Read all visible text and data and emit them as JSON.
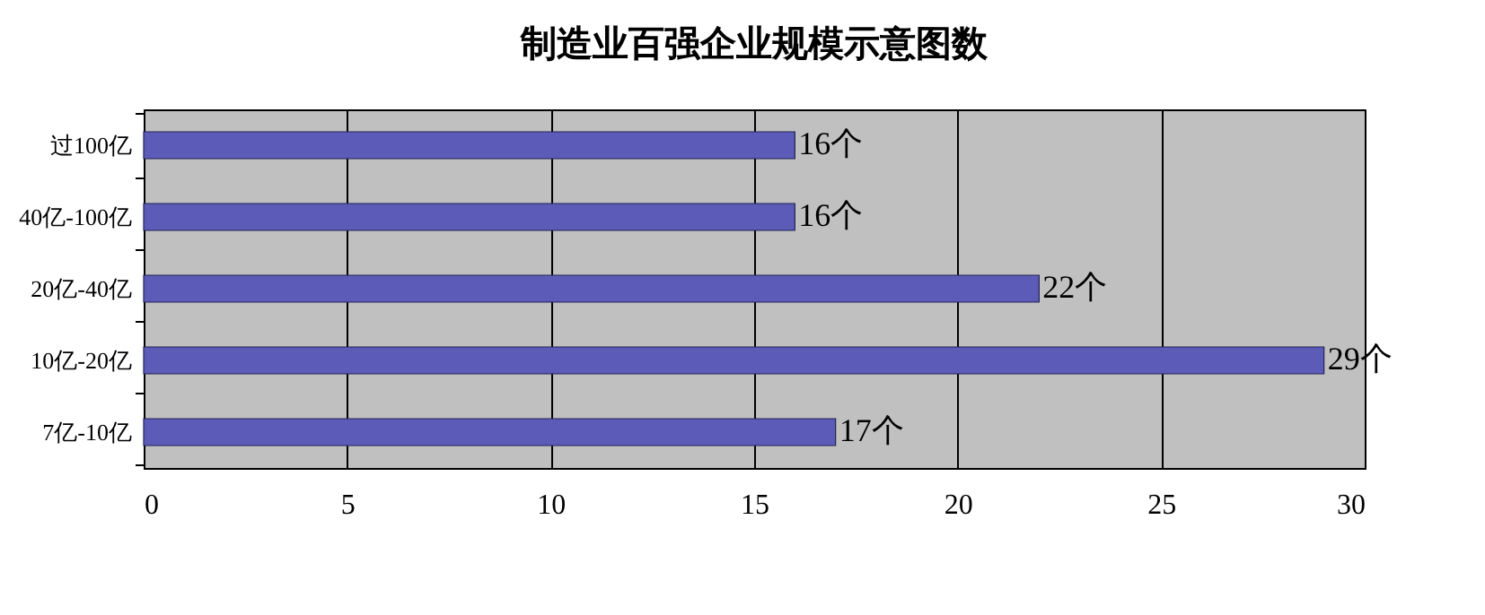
{
  "chart_data": {
    "type": "bar",
    "title": "制造业百强企业规模示意图数",
    "orientation": "horizontal",
    "categories": [
      "过100亿",
      "40亿-100亿",
      "20亿-40亿",
      "10亿-20亿",
      "7亿-10亿"
    ],
    "values": [
      16,
      16,
      22,
      29,
      17
    ],
    "value_labels": [
      "16个",
      "16个",
      "22个",
      "29个",
      "17个"
    ],
    "color": "#5c5cb8",
    "xlim": [
      0,
      30
    ],
    "xticks": [
      0,
      5,
      10,
      15,
      20,
      25,
      30
    ],
    "grid": "x"
  }
}
